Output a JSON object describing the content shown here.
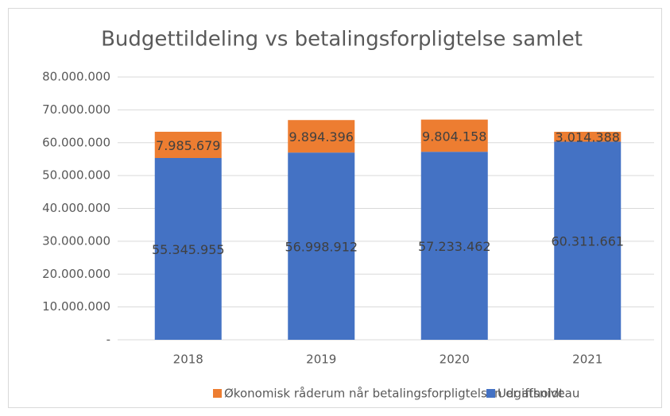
{
  "chart_data": {
    "type": "stacked_bar",
    "title": "Budgettildeling vs betalingsforpligtelse samlet",
    "categories": [
      "2018",
      "2019",
      "2020",
      "2021"
    ],
    "series": [
      {
        "name": "Udgiftsniveau",
        "color": "#4472c4",
        "values": [
          55345955,
          56998912,
          57233462,
          60311661
        ],
        "value_labels": [
          "55.345.955",
          "56.998.912",
          "57.233.462",
          "60.311.661"
        ]
      },
      {
        "name": "Økonomisk råderum når betalingsforpligtelsen er afholdt",
        "color": "#ed7d31",
        "values": [
          7985679,
          9894396,
          9804158,
          3014388
        ],
        "value_labels": [
          "7.985.679",
          "9.894.396",
          "9.804.158",
          "3.014.388"
        ]
      }
    ],
    "ylim": [
      0,
      80000000
    ],
    "yticks": [
      {
        "value": 0,
        "label": "-"
      },
      {
        "value": 10000000,
        "label": "10.000.000"
      },
      {
        "value": 20000000,
        "label": "20.000.000"
      },
      {
        "value": 30000000,
        "label": "30.000.000"
      },
      {
        "value": 40000000,
        "label": "40.000.000"
      },
      {
        "value": 50000000,
        "label": "50.000.000"
      },
      {
        "value": 60000000,
        "label": "60.000.000"
      },
      {
        "value": 70000000,
        "label": "70.000.000"
      },
      {
        "value": 80000000,
        "label": "80.000.000"
      }
    ],
    "grid": true,
    "legend": "bottom"
  }
}
